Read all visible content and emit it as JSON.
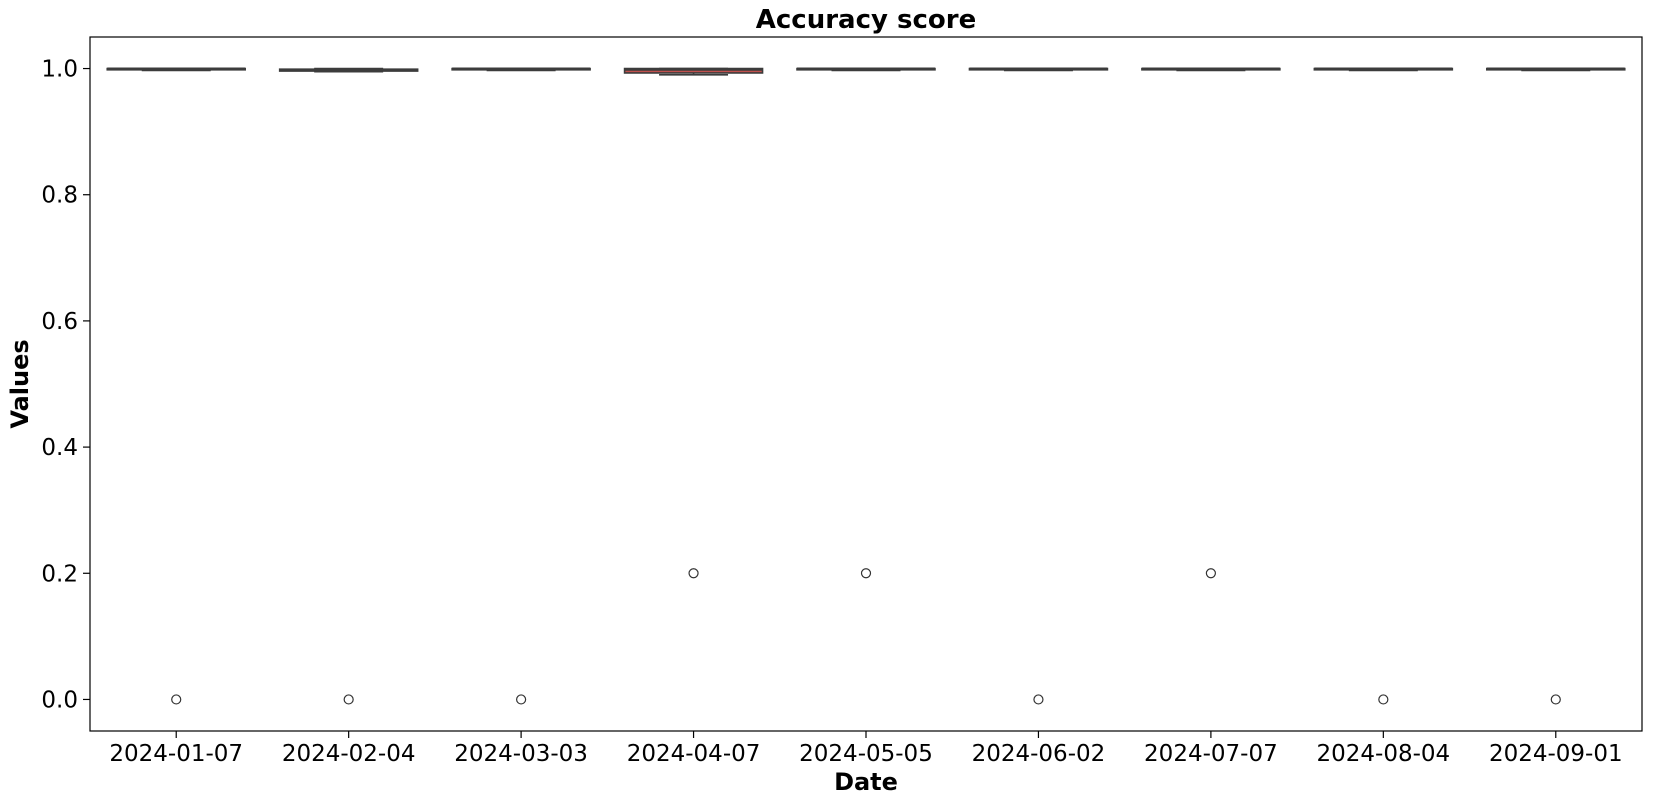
{
  "chart_data": {
    "type": "box",
    "title": "Accuracy score",
    "xlabel": "Date",
    "ylabel": "Values",
    "ylim": [
      -0.05,
      1.05
    ],
    "yticks": [
      0.0,
      0.2,
      0.4,
      0.6,
      0.8,
      1.0
    ],
    "ytick_labels": [
      "0.0",
      "0.2",
      "0.4",
      "0.6",
      "0.8",
      "1.0"
    ],
    "grid": false,
    "categories": [
      "2024-01-07",
      "2024-02-04",
      "2024-03-03",
      "2024-04-07",
      "2024-05-05",
      "2024-06-02",
      "2024-07-07",
      "2024-08-04",
      "2024-09-01"
    ],
    "boxes": [
      {
        "q1": 0.998,
        "median": 1.0,
        "q3": 1.0,
        "whisker_low": 0.997,
        "whisker_high": 1.0,
        "outliers": [
          0.0
        ],
        "color": "#6a9bd8"
      },
      {
        "q1": 0.996,
        "median": 0.998,
        "q3": 0.999,
        "whisker_low": 0.995,
        "whisker_high": 1.0,
        "outliers": [
          0.0
        ],
        "color": "#e0a060"
      },
      {
        "q1": 0.998,
        "median": 1.0,
        "q3": 1.0,
        "whisker_low": 0.997,
        "whisker_high": 1.0,
        "outliers": [
          0.0
        ],
        "color": "#6abf6a"
      },
      {
        "q1": 0.993,
        "median": 0.998,
        "q3": 1.0,
        "whisker_low": 0.99,
        "whisker_high": 1.0,
        "outliers": [
          0.2
        ],
        "color": "#c0504d"
      },
      {
        "q1": 0.998,
        "median": 1.0,
        "q3": 1.0,
        "whisker_low": 0.997,
        "whisker_high": 1.0,
        "outliers": [
          0.2
        ],
        "color": "#9b7fc9"
      },
      {
        "q1": 0.998,
        "median": 1.0,
        "q3": 1.0,
        "whisker_low": 0.997,
        "whisker_high": 1.0,
        "outliers": [
          0.0
        ],
        "color": "#a0785a"
      },
      {
        "q1": 0.998,
        "median": 1.0,
        "q3": 1.0,
        "whisker_low": 0.997,
        "whisker_high": 1.0,
        "outliers": [
          0.2
        ],
        "color": "#e08fc8"
      },
      {
        "q1": 0.998,
        "median": 1.0,
        "q3": 1.0,
        "whisker_low": 0.997,
        "whisker_high": 1.0,
        "outliers": [
          0.0
        ],
        "color": "#8c8c8c"
      },
      {
        "q1": 0.998,
        "median": 1.0,
        "q3": 1.0,
        "whisker_low": 0.997,
        "whisker_high": 1.0,
        "outliers": [
          0.0
        ],
        "color": "#c9c95a"
      }
    ]
  }
}
